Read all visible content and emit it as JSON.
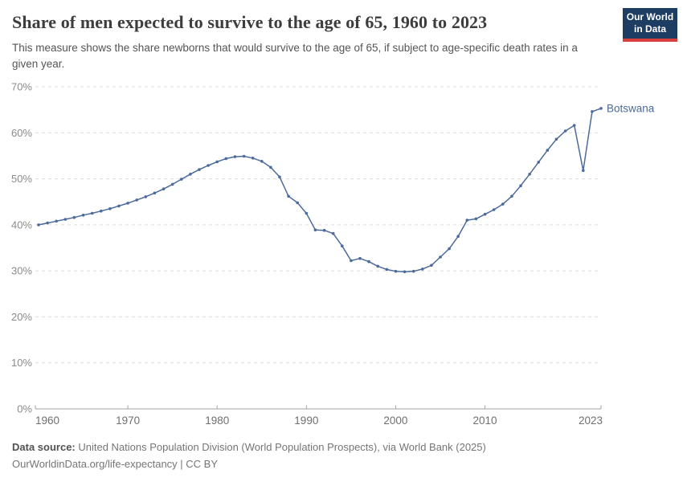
{
  "header": {
    "title": "Share of men expected to survive to the age of 65, 1960 to 2023",
    "subtitle": "This measure shows the share newborns that would survive to the age of 65, if subject to age-specific death rates in a given year.",
    "logo_line1": "Our World",
    "logo_line2": "in Data"
  },
  "chart_data": {
    "type": "line",
    "entity_label": "Botswana",
    "title": "Share of men expected to survive to the age of 65, 1960 to 2023",
    "xlabel": "",
    "ylabel": "",
    "xlim": [
      1960,
      2023
    ],
    "ylim": [
      0,
      70
    ],
    "x_ticks": [
      1960,
      1970,
      1980,
      1990,
      2000,
      2010,
      2023
    ],
    "y_ticks": [
      0,
      10,
      20,
      30,
      40,
      50,
      60,
      70
    ],
    "y_tick_suffix": "%",
    "grid": "horizontal-dashed",
    "legend_position": "end-of-line-label",
    "series": [
      {
        "name": "Botswana",
        "color": "#4C6A9C",
        "x": [
          1960,
          1961,
          1962,
          1963,
          1964,
          1965,
          1966,
          1967,
          1968,
          1969,
          1970,
          1971,
          1972,
          1973,
          1974,
          1975,
          1976,
          1977,
          1978,
          1979,
          1980,
          1981,
          1982,
          1983,
          1984,
          1985,
          1986,
          1987,
          1988,
          1989,
          1990,
          1991,
          1992,
          1993,
          1994,
          1995,
          1996,
          1997,
          1998,
          1999,
          2000,
          2001,
          2002,
          2003,
          2004,
          2005,
          2006,
          2007,
          2008,
          2009,
          2010,
          2011,
          2012,
          2013,
          2014,
          2015,
          2016,
          2017,
          2018,
          2019,
          2020,
          2021,
          2022,
          2023
        ],
        "values": [
          40.0,
          40.4,
          40.8,
          41.2,
          41.6,
          42.1,
          42.5,
          43.0,
          43.5,
          44.1,
          44.7,
          45.4,
          46.1,
          46.9,
          47.8,
          48.8,
          49.9,
          51.0,
          52.0,
          52.9,
          53.7,
          54.4,
          54.8,
          54.9,
          54.5,
          53.8,
          52.5,
          50.4,
          46.2,
          44.8,
          42.5,
          38.9,
          38.8,
          38.1,
          35.4,
          32.2,
          32.7,
          32.0,
          31.0,
          30.3,
          29.9,
          29.8,
          29.9,
          30.4,
          31.2,
          33.0,
          34.8,
          37.5,
          41.0,
          41.3,
          42.3,
          43.3,
          44.5,
          46.2,
          48.5,
          51.0,
          53.6,
          56.2,
          58.6,
          60.4,
          61.6,
          51.8,
          64.6,
          65.3
        ]
      }
    ]
  },
  "footer": {
    "source_label": "Data source:",
    "source_text": " United Nations Population Division (World Population Prospects), via World Bank (2025)",
    "url": "OurWorldinData.org/life-expectancy",
    "license": " | CC BY"
  },
  "colors": {
    "accent_line": "#4C6A9C",
    "grid": "#dcdcdc",
    "axis": "#a5a5a5",
    "y_label": "#8a8a8a",
    "x_label": "#6f6f6f",
    "logo_bg": "#1d3d63",
    "logo_accent": "#d8403c"
  }
}
